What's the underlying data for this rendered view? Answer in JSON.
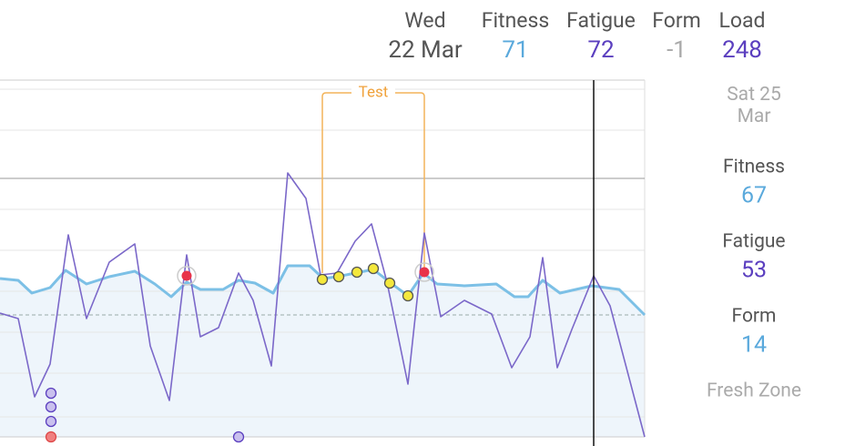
{
  "header": {
    "columns": [
      {
        "label": "Wed",
        "value": "22 Mar"
      },
      {
        "label": "Fitness",
        "value": 71
      },
      {
        "label": "Fatigue",
        "value": 72
      },
      {
        "label": "Form",
        "value": -1
      },
      {
        "label": "Load",
        "value": 248
      }
    ]
  },
  "side_panel": {
    "date": "Sat 25 Mar",
    "stats": [
      {
        "label": "Fitness",
        "value": 67
      },
      {
        "label": "Fatigue",
        "value": 53
      },
      {
        "label": "Form",
        "value": 14
      }
    ],
    "zone": "Fresh Zone"
  },
  "chart": {
    "annotation": "Test"
  }
}
